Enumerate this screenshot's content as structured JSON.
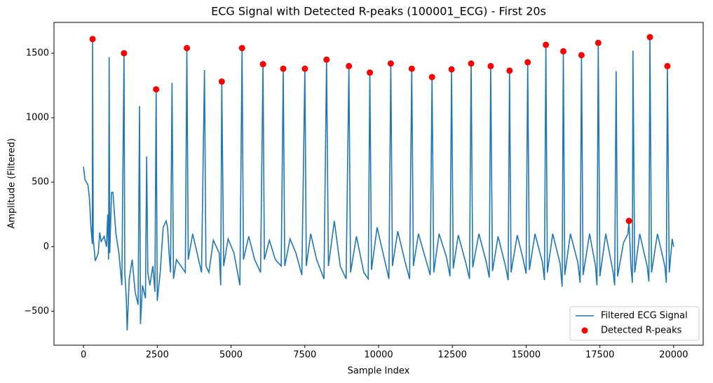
{
  "chart_data": {
    "type": "line",
    "title": "ECG Signal with Detected R-peaks (100001_ECG) - First 20s",
    "x_label": "Sample Index",
    "y_label": "Amplitude (Filtered)",
    "xlim": [
      -1000,
      21000
    ],
    "ylim": [
      -764,
      1739
    ],
    "xticks": [
      0,
      2500,
      5000,
      7500,
      10000,
      12500,
      15000,
      17500,
      20000
    ],
    "yticks": [
      {
        "value": -500,
        "label": "−500"
      },
      0,
      500,
      1000,
      1500
    ],
    "legend": "lower right",
    "series": [
      {
        "name": "Filtered ECG Signal",
        "type": "line",
        "color": "#1f77b4",
        "x": [
          0,
          50,
          150,
          200,
          250,
          300,
          308,
          330,
          400,
          500,
          550,
          600,
          700,
          780,
          820,
          850,
          870,
          890,
          950,
          1000,
          1050,
          1100,
          1200,
          1300,
          1373,
          1400,
          1450,
          1480,
          1550,
          1650,
          1750,
          1850,
          1900,
          1930,
          2000,
          2100,
          2140,
          2180,
          2250,
          2350,
          2420,
          2462,
          2500,
          2600,
          2700,
          2800,
          2850,
          2900,
          2950,
          3000,
          3050,
          3150,
          3300,
          3450,
          3503,
          3550,
          3700,
          3850,
          4000,
          4100,
          4150,
          4250,
          4400,
          4600,
          4650,
          4686,
          4750,
          4900,
          5100,
          5300,
          5373,
          5420,
          5600,
          5800,
          6000,
          6083,
          6130,
          6300,
          6500,
          6700,
          6769,
          6820,
          7000,
          7200,
          7400,
          7503,
          7550,
          7700,
          7900,
          8150,
          8237,
          8300,
          8500,
          8700,
          8900,
          8994,
          9050,
          9250,
          9500,
          9650,
          9704,
          9760,
          9950,
          10200,
          10350,
          10414,
          10470,
          10650,
          10900,
          11050,
          11124,
          11180,
          11350,
          11600,
          11750,
          11811,
          11870,
          12050,
          12300,
          12420,
          12473,
          12530,
          12700,
          12950,
          13080,
          13136,
          13190,
          13400,
          13650,
          13750,
          13799,
          13860,
          14050,
          14300,
          14390,
          14438,
          14490,
          14700,
          14900,
          15000,
          15053,
          15110,
          15300,
          15550,
          15620,
          15669,
          15720,
          15900,
          16150,
          16220,
          16260,
          16310,
          16500,
          16750,
          16830,
          16876,
          16930,
          17150,
          17350,
          17400,
          17444,
          17500,
          17700,
          17950,
          18000,
          18050,
          18100,
          18300,
          18450,
          18485,
          18550,
          18600,
          18620,
          18680,
          18850,
          19100,
          19160,
          19195,
          19250,
          19450,
          19700,
          19750,
          19787,
          19850,
          19950,
          20000
        ],
        "values": [
          620,
          520,
          480,
          380,
          160,
          20,
          1610,
          60,
          -110,
          -50,
          110,
          40,
          80,
          0,
          250,
          -100,
          1470,
          -50,
          420,
          420,
          250,
          100,
          -50,
          -300,
          1500,
          -200,
          -400,
          -650,
          -250,
          -100,
          -350,
          -450,
          1090,
          -600,
          -300,
          -400,
          700,
          -200,
          -300,
          -150,
          -350,
          1220,
          -420,
          -200,
          150,
          200,
          150,
          -50,
          -200,
          1270,
          -250,
          -100,
          -150,
          -200,
          1540,
          -100,
          100,
          -50,
          -200,
          1370,
          -150,
          -200,
          50,
          -50,
          -300,
          1280,
          -150,
          60,
          -50,
          -300,
          1540,
          -100,
          80,
          -100,
          -200,
          1415,
          -100,
          50,
          -100,
          -150,
          1380,
          -150,
          60,
          -50,
          -220,
          1380,
          -150,
          100,
          -100,
          -250,
          1450,
          -150,
          200,
          -150,
          -250,
          1400,
          -200,
          80,
          -200,
          -250,
          1350,
          -180,
          150,
          -100,
          -250,
          1420,
          -150,
          120,
          -120,
          -250,
          1380,
          -150,
          100,
          -100,
          -220,
          1315,
          -200,
          100,
          -80,
          -230,
          1375,
          -170,
          90,
          -120,
          -250,
          1420,
          -160,
          100,
          -120,
          -240,
          1400,
          -190,
          80,
          -150,
          -260,
          1365,
          -200,
          90,
          -100,
          -210,
          1430,
          -180,
          100,
          -120,
          -260,
          1565,
          -200,
          100,
          -130,
          -310,
          1515,
          -220,
          100,
          -120,
          -280,
          1485,
          -220,
          100,
          -150,
          -300,
          1580,
          -230,
          100,
          -200,
          -300,
          1360,
          -230,
          30,
          100,
          200,
          -150,
          -280,
          1520,
          -200,
          100,
          -150,
          -270,
          1625,
          -200,
          100,
          -150,
          -280,
          1400,
          -200,
          60,
          0
        ]
      },
      {
        "name": "Detected R-peaks",
        "type": "scatter",
        "color": "#ff0000",
        "x": [
          308,
          1373,
          2462,
          3503,
          4686,
          5373,
          6083,
          6769,
          7503,
          8237,
          8994,
          9704,
          10414,
          11124,
          11811,
          12473,
          13136,
          13799,
          14438,
          15053,
          15669,
          16260,
          16876,
          17444,
          18485,
          19195,
          19787
        ],
        "values": [
          1610,
          1500,
          1220,
          1540,
          1280,
          1540,
          1415,
          1380,
          1380,
          1450,
          1400,
          1350,
          1420,
          1380,
          1315,
          1375,
          1420,
          1400,
          1365,
          1430,
          1565,
          1515,
          1485,
          1580,
          200,
          1625,
          1400
        ]
      }
    ]
  }
}
